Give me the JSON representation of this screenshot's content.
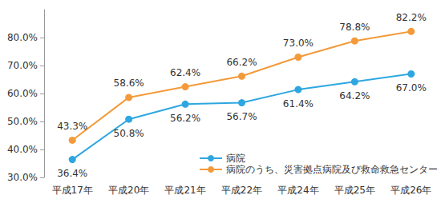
{
  "chart_data": {
    "type": "line",
    "categories": [
      "平成17年",
      "平成20年",
      "平成21年",
      "平成22年",
      "平成24年",
      "平成25年",
      "平成26年"
    ],
    "series": [
      {
        "name": "病院",
        "color": "#2ea7e0",
        "marker": "circle",
        "values": [
          36.4,
          50.8,
          56.2,
          56.7,
          61.4,
          64.2,
          67.0
        ],
        "value_labels": [
          "36.4%",
          "50.8%",
          "56.2%",
          "56.7%",
          "61.4%",
          "64.2%",
          "67.0%"
        ]
      },
      {
        "name": "病院のうち、災害拠点病院及び救命救急センター",
        "color": "#f39a3a",
        "marker": "circle",
        "values": [
          43.3,
          58.6,
          62.4,
          66.2,
          73.0,
          78.8,
          82.2
        ],
        "value_labels": [
          "43.3%",
          "58.6%",
          "62.4%",
          "66.2%",
          "73.0%",
          "78.8%",
          "82.2%"
        ]
      }
    ],
    "ylim": [
      30,
      90
    ],
    "yticks": [
      {
        "value": 30,
        "label": "30.0%"
      },
      {
        "value": 40,
        "label": "40.0%"
      },
      {
        "value": 50,
        "label": "50.0%"
      },
      {
        "value": 60,
        "label": "60.0%"
      },
      {
        "value": 70,
        "label": "70.0%"
      },
      {
        "value": 80,
        "label": "80.0%"
      }
    ],
    "grid": false,
    "data_labels": true,
    "legend": "lower right"
  }
}
